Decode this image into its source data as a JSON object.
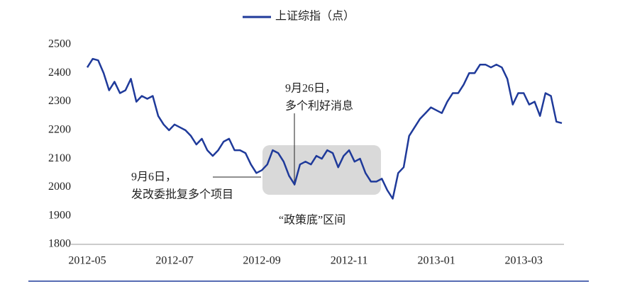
{
  "chart_data": {
    "type": "line",
    "legend": "top",
    "categories": [
      "2012-05",
      null,
      null,
      null,
      null,
      null,
      null,
      null,
      null,
      null,
      null,
      null,
      null,
      null,
      null,
      null,
      "2012-07",
      null,
      null,
      null,
      null,
      null,
      null,
      null,
      null,
      null,
      null,
      null,
      null,
      null,
      null,
      null,
      "2012-09",
      null,
      null,
      null,
      null,
      null,
      null,
      null,
      null,
      null,
      null,
      null,
      null,
      null,
      null,
      null,
      "2012-11",
      null,
      null,
      null,
      null,
      null,
      null,
      null,
      null,
      null,
      null,
      null,
      null,
      null,
      null,
      null,
      "2013-01",
      null,
      null,
      null,
      null,
      null,
      null,
      null,
      null,
      null,
      null,
      null,
      null,
      null,
      null,
      null,
      "2013-03",
      null,
      null,
      null,
      null,
      null,
      null,
      null
    ],
    "series": [
      {
        "name": "上证综指（点）",
        "color": "#1f3a9a",
        "values": [
          2420,
          2450,
          2445,
          2400,
          2340,
          2370,
          2330,
          2340,
          2380,
          2300,
          2320,
          2310,
          2320,
          2250,
          2220,
          2200,
          2220,
          2210,
          2200,
          2180,
          2150,
          2170,
          2130,
          2110,
          2130,
          2160,
          2170,
          2130,
          2130,
          2120,
          2080,
          2050,
          2060,
          2080,
          2130,
          2120,
          2090,
          2040,
          2010,
          2080,
          2090,
          2080,
          2110,
          2100,
          2130,
          2120,
          2070,
          2110,
          2130,
          2090,
          2100,
          2050,
          2020,
          2020,
          2030,
          1990,
          1960,
          2050,
          2070,
          2180,
          2210,
          2240,
          2260,
          2280,
          2270,
          2260,
          2300,
          2330,
          2330,
          2360,
          2400,
          2400,
          2430,
          2430,
          2420,
          2430,
          2420,
          2380,
          2290,
          2330,
          2330,
          2290,
          2300,
          2250,
          2330,
          2320,
          2230,
          2225
        ]
      }
    ],
    "ylim": [
      1800,
      2500
    ],
    "yticks": [
      1800,
      1900,
      2000,
      2100,
      2200,
      2300,
      2400,
      2500
    ],
    "annotations": {
      "sep26": [
        "9月26日，",
        "多个利好消息"
      ],
      "sep6": [
        "9月6日，",
        "发改委批复多个项目"
      ],
      "zone": "“政策底”区间"
    }
  }
}
